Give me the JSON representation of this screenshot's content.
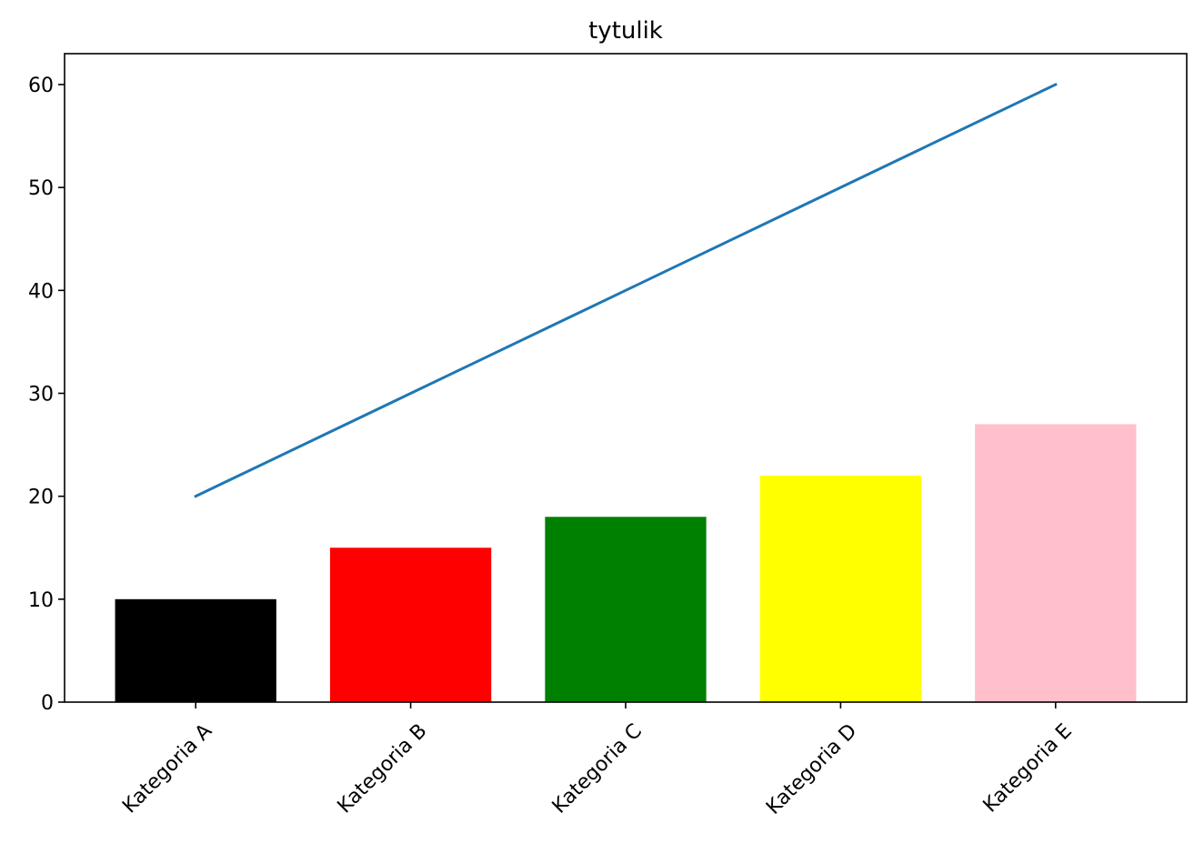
{
  "chart_data": {
    "type": "bar",
    "title": "tytulik",
    "xlabel": "",
    "ylabel": "",
    "categories": [
      "Kategoria A",
      "Kategoria B",
      "Kategoria C",
      "Kategoria D",
      "Kategoria E"
    ],
    "series": [
      {
        "type": "bar",
        "values": [
          10,
          15,
          18,
          22,
          27
        ],
        "colors": [
          "#000000",
          "#ff0000",
          "#008000",
          "#ffff00",
          "#ffc0cb"
        ]
      },
      {
        "type": "line",
        "values": [
          20,
          30,
          40,
          50,
          60
        ],
        "color": "#1f77b4"
      }
    ],
    "ylim": [
      0,
      63
    ],
    "yticks": [
      0,
      10,
      20,
      30,
      40,
      50,
      60
    ],
    "grid": false,
    "legend": "none",
    "xtick_rotation": 45
  }
}
